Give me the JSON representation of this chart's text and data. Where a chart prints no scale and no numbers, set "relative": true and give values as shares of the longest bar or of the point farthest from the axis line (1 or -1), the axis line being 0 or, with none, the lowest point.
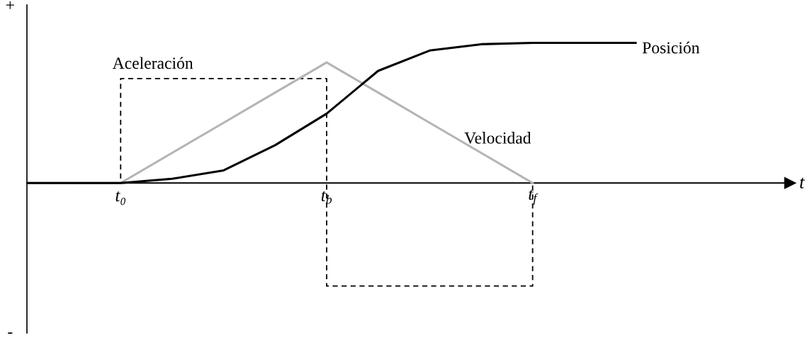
{
  "chart_data": {
    "type": "line",
    "relative": true,
    "xlabel": "t",
    "annotations": [
      "+",
      "-"
    ],
    "categories": [
      null,
      null,
      "t₀",
      null,
      null,
      null,
      "t$_{b}$",
      null,
      null,
      null,
      "t$_{f}$",
      null,
      null,
      null,
      null,
      null
    ],
    "grid": false,
    "legend": false,
    "series": [
      {
        "name": "Posición",
        "color": "#000000",
        "line_style": "solid",
        "values": [
          0,
          0,
          0,
          0.03,
          0.09,
          0.27,
          0.495,
          0.8,
          0.945,
          0.99,
          1,
          1,
          1,
          null,
          null,
          null
        ]
      },
      {
        "name": "Velocidad",
        "color": "#b4b4b4",
        "line_style": "solid",
        "values": [
          0,
          0,
          0,
          0.215,
          0.43,
          0.645,
          0.86,
          0.645,
          0.43,
          0.215,
          0,
          null,
          null,
          null,
          null,
          null
        ]
      },
      {
        "name": "Aceleración",
        "type": "step",
        "color": "#000000",
        "line_style": "dashed",
        "values": [
          0,
          0,
          0.745,
          0.745,
          0.745,
          0.745,
          -0.735,
          -0.735,
          -0.735,
          -0.735,
          0,
          null,
          null,
          null,
          null,
          null
        ]
      }
    ]
  }
}
